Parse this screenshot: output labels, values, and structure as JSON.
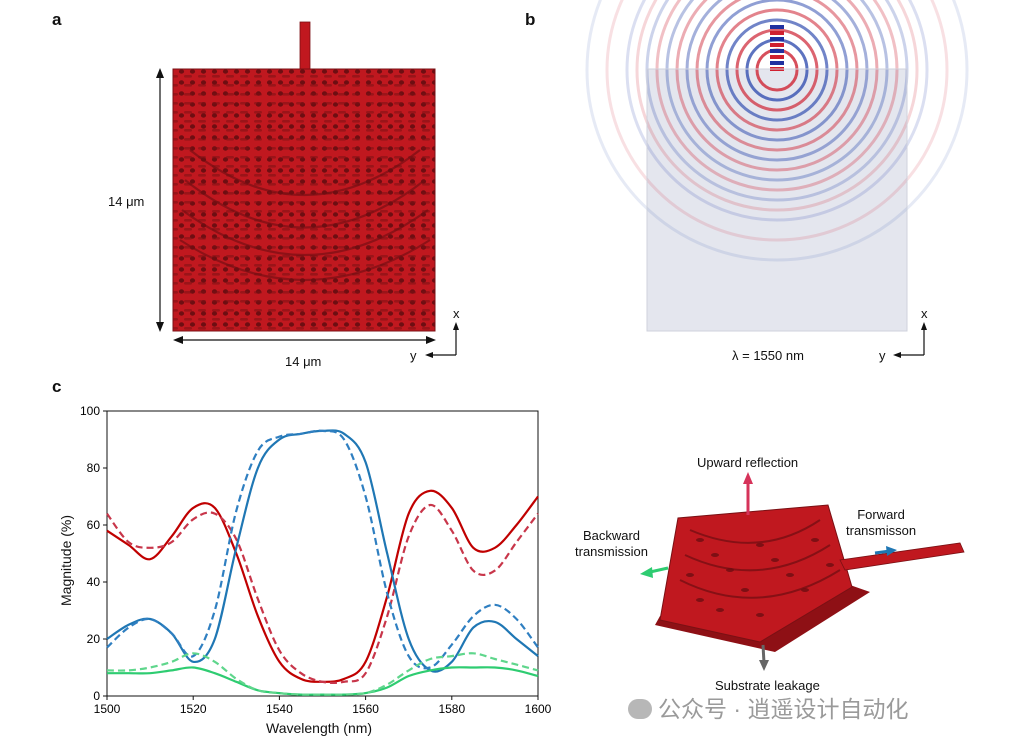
{
  "panels": {
    "a": "a",
    "b": "b",
    "c": "c"
  },
  "panel_a": {
    "height_label": "14 μm",
    "width_label": "14 μm",
    "axis_x": "x",
    "axis_y": "y"
  },
  "panel_b": {
    "wavelength_label": "λ = 1550 nm",
    "axis_x": "x",
    "axis_y": "y"
  },
  "panel_d": {
    "upward": "Upward reflection",
    "forward": "Forward\ntransmisson",
    "backward": "Backward\ntransmission",
    "leakage": "Substrate leakage"
  },
  "watermark": "公众号 · 逍遥设计自动化",
  "colors": {
    "device_red": "#c0181f",
    "red": "#c00000",
    "blue": "#1f77b4",
    "green": "#2ecc71",
    "gray": "#666666"
  },
  "chart_data": {
    "type": "line",
    "xlabel": "Wavelength (nm)",
    "ylabel": "Magnitude (%)",
    "xlim": [
      1500,
      1600
    ],
    "ylim": [
      0,
      100
    ],
    "xticks": [
      "1500",
      "1520",
      "1540",
      "1560",
      "1580",
      "1600"
    ],
    "yticks": [
      "0",
      "20",
      "40",
      "60",
      "80",
      "100"
    ],
    "x": [
      1500,
      1505,
      1510,
      1515,
      1520,
      1525,
      1530,
      1535,
      1540,
      1545,
      1550,
      1555,
      1560,
      1565,
      1570,
      1575,
      1580,
      1585,
      1590,
      1595,
      1600
    ],
    "series": [
      {
        "color": "#c00000",
        "style": "solid",
        "values": [
          58,
          53,
          48,
          56,
          66,
          66,
          50,
          28,
          12,
          6,
          5,
          6,
          12,
          35,
          64,
          72,
          66,
          52,
          52,
          60,
          70
        ]
      },
      {
        "color": "#c8364a",
        "style": "dashed",
        "values": [
          64,
          54,
          52,
          54,
          62,
          64,
          55,
          34,
          16,
          8,
          5,
          5,
          8,
          28,
          56,
          67,
          58,
          44,
          44,
          54,
          64
        ]
      },
      {
        "color": "#1f77b4",
        "style": "solid",
        "values": [
          20,
          25,
          27,
          22,
          12,
          20,
          52,
          80,
          90,
          92,
          93,
          92,
          82,
          50,
          20,
          9,
          12,
          24,
          26,
          20,
          14
        ]
      },
      {
        "color": "#2f7fc1",
        "style": "dashed",
        "values": [
          17,
          24,
          27,
          22,
          14,
          30,
          65,
          86,
          91,
          92,
          93,
          90,
          70,
          36,
          14,
          10,
          18,
          28,
          32,
          27,
          17
        ]
      },
      {
        "color": "#2ecc71",
        "style": "solid",
        "values": [
          8,
          8,
          8,
          9,
          10,
          8,
          5,
          2,
          1,
          0.5,
          0.5,
          0.5,
          1,
          3,
          7,
          9,
          10,
          10,
          10,
          9,
          7
        ]
      },
      {
        "color": "#5fd68c",
        "style": "dashed",
        "values": [
          9,
          9,
          10,
          12,
          15,
          12,
          6,
          2,
          1,
          0.5,
          0.5,
          0.5,
          1,
          4,
          9,
          13,
          14,
          15,
          13,
          11,
          9
        ]
      }
    ]
  }
}
